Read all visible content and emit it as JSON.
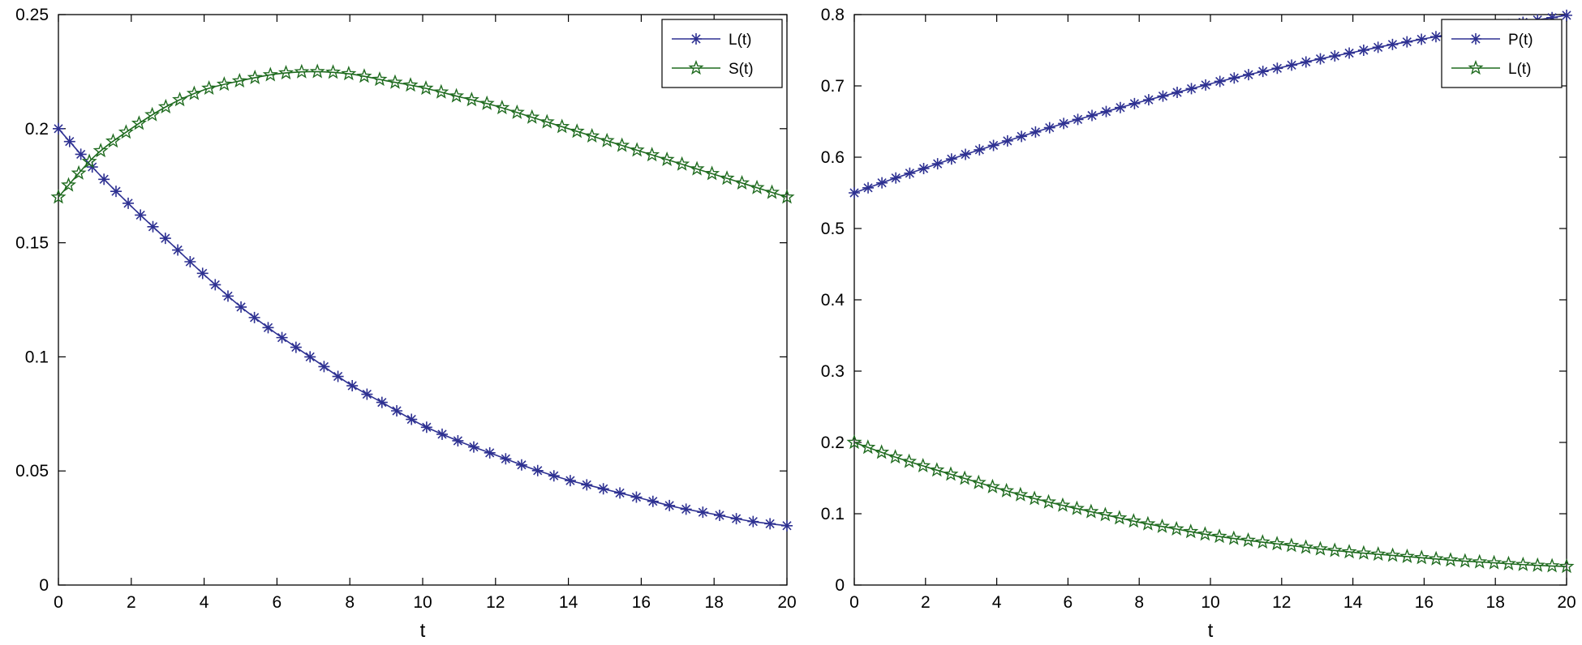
{
  "chart_data": [
    {
      "type": "line",
      "xlabel": "t",
      "ylabel": "",
      "xlim": [
        0,
        20
      ],
      "ylim": [
        0,
        0.25
      ],
      "xticks": [
        "0",
        "2",
        "4",
        "6",
        "8",
        "10",
        "12",
        "14",
        "16",
        "18",
        "20"
      ],
      "yticks": [
        "0",
        "0.05",
        "0.1",
        "0.15",
        "0.2",
        "0.25"
      ],
      "grid": false,
      "legend_position": "top-right",
      "x": [
        0,
        1,
        2,
        3,
        4,
        5,
        6,
        7,
        8,
        9,
        10,
        11,
        12,
        13,
        14,
        15,
        16,
        17,
        18,
        19,
        20
      ],
      "series": [
        {
          "name": "L(t)",
          "marker": "asterisk",
          "color": "#2e3192",
          "values": [
            0.2,
            0.182,
            0.166,
            0.151,
            0.136,
            0.122,
            0.11,
            0.099,
            0.088,
            0.079,
            0.07,
            0.063,
            0.057,
            0.051,
            0.046,
            0.042,
            0.038,
            0.034,
            0.031,
            0.028,
            0.026
          ]
        },
        {
          "name": "S(t)",
          "marker": "pentagram",
          "color": "#1f6b1f",
          "values": [
            0.17,
            0.188,
            0.2,
            0.21,
            0.217,
            0.221,
            0.224,
            0.225,
            0.224,
            0.221,
            0.218,
            0.214,
            0.21,
            0.205,
            0.2,
            0.195,
            0.19,
            0.185,
            0.18,
            0.175,
            0.17
          ]
        }
      ]
    },
    {
      "type": "line",
      "xlabel": "t",
      "ylabel": "",
      "xlim": [
        0,
        20
      ],
      "ylim": [
        0,
        0.8
      ],
      "xticks": [
        "0",
        "2",
        "4",
        "6",
        "8",
        "10",
        "12",
        "14",
        "16",
        "18",
        "20"
      ],
      "yticks": [
        "0",
        "0.1",
        "0.2",
        "0.3",
        "0.4",
        "0.5",
        "0.6",
        "0.7",
        "0.8"
      ],
      "grid": false,
      "legend_position": "top-right",
      "x": [
        0,
        1,
        2,
        3,
        4,
        5,
        6,
        7,
        8,
        9,
        10,
        11,
        12,
        13,
        14,
        15,
        16,
        17,
        18,
        19,
        20
      ],
      "series": [
        {
          "name": "P(t)",
          "marker": "asterisk",
          "color": "#2e3192",
          "values": [
            0.55,
            0.568,
            0.585,
            0.602,
            0.618,
            0.634,
            0.649,
            0.663,
            0.677,
            0.69,
            0.703,
            0.715,
            0.726,
            0.737,
            0.747,
            0.757,
            0.766,
            0.775,
            0.783,
            0.791,
            0.799
          ]
        },
        {
          "name": "L(t)",
          "marker": "pentagram",
          "color": "#1f6b1f",
          "values": [
            0.2,
            0.182,
            0.166,
            0.151,
            0.136,
            0.122,
            0.11,
            0.099,
            0.088,
            0.079,
            0.07,
            0.063,
            0.057,
            0.051,
            0.046,
            0.042,
            0.038,
            0.034,
            0.031,
            0.028,
            0.026
          ]
        }
      ]
    }
  ]
}
